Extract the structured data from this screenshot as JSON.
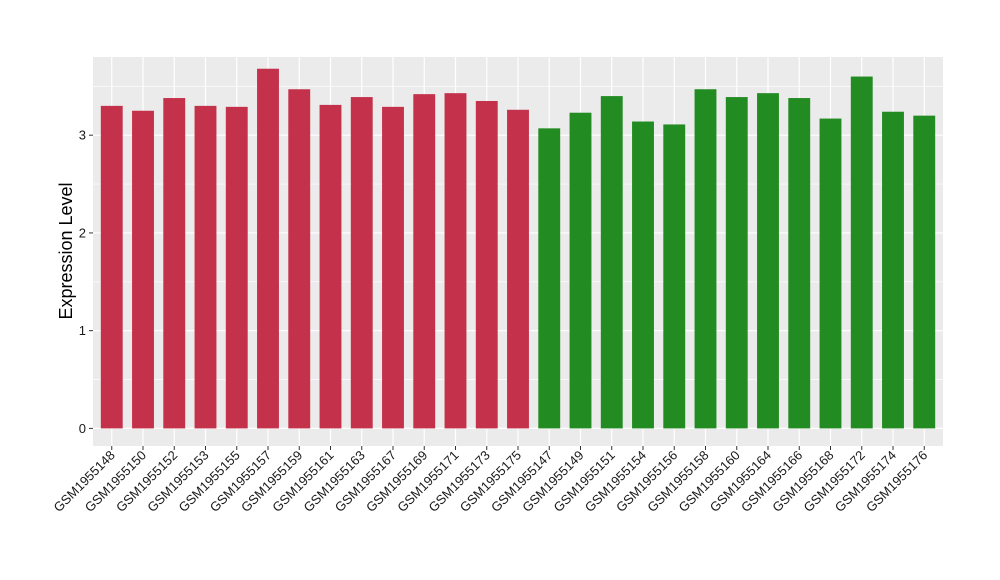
{
  "chart_data": {
    "type": "bar",
    "title": "",
    "xlabel": "",
    "ylabel": "Expression Level",
    "ylim": [
      -0.18,
      3.8
    ],
    "yticks": [
      0,
      1,
      2,
      3
    ],
    "grid": true,
    "colors": {
      "panel": "#ebebeb",
      "grid": "#ffffff",
      "tick": "#333333"
    },
    "categories": [
      "GSM1955148",
      "GSM1955150",
      "GSM1955152",
      "GSM1955153",
      "GSM1955155",
      "GSM1955157",
      "GSM1955159",
      "GSM1955161",
      "GSM1955163",
      "GSM1955167",
      "GSM1955169",
      "GSM1955171",
      "GSM1955173",
      "GSM1955175",
      "GSM1955147",
      "GSM1955149",
      "GSM1955151",
      "GSM1955154",
      "GSM1955156",
      "GSM1955158",
      "GSM1955160",
      "GSM1955164",
      "GSM1955166",
      "GSM1955168",
      "GSM1955172",
      "GSM1955174",
      "GSM1955176"
    ],
    "values": [
      3.3,
      3.25,
      3.38,
      3.3,
      3.29,
      3.68,
      3.47,
      3.31,
      3.39,
      3.29,
      3.42,
      3.43,
      3.35,
      3.26,
      3.07,
      3.23,
      3.4,
      3.14,
      3.11,
      3.47,
      3.39,
      3.43,
      3.38,
      3.17,
      3.6,
      3.24,
      3.2
    ],
    "bar_colors": [
      "#c4314b",
      "#c4314b",
      "#c4314b",
      "#c4314b",
      "#c4314b",
      "#c4314b",
      "#c4314b",
      "#c4314b",
      "#c4314b",
      "#c4314b",
      "#c4314b",
      "#c4314b",
      "#c4314b",
      "#c4314b",
      "#228b22",
      "#228b22",
      "#228b22",
      "#228b22",
      "#228b22",
      "#228b22",
      "#228b22",
      "#228b22",
      "#228b22",
      "#228b22",
      "#228b22",
      "#228b22",
      "#228b22"
    ]
  }
}
